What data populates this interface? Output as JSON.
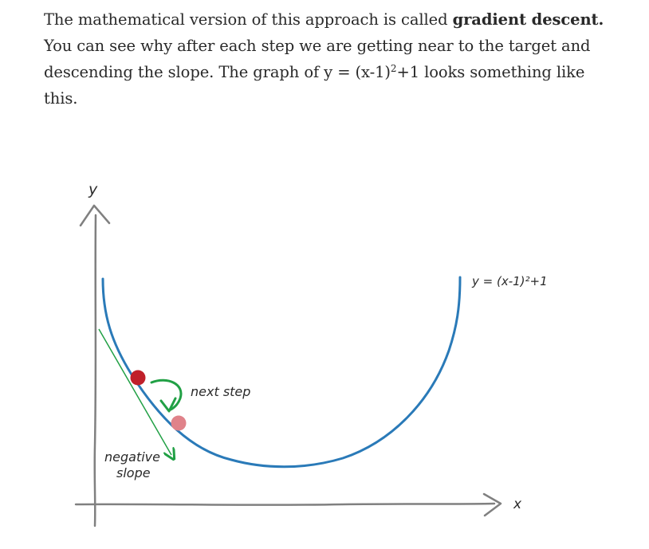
{
  "paragraph": {
    "text_1": "The mathematical version of this approach is called ",
    "bold": "gradient descent.",
    "text_2": " You can see why after each step we are getting near to the target and descending the slope. The graph of y = (x-1)",
    "superscript": "2",
    "text_3": "+1 looks something like this."
  },
  "figure": {
    "y_axis_label": "y",
    "x_axis_label": "x",
    "curve_label": "y = (x-1)²+1",
    "next_step_label": "next step",
    "negative_label_line1": "negative",
    "negative_label_line2": "slope",
    "colors": {
      "curve": "#2a7ab8",
      "axis": "#808080",
      "tangent": "#21a045",
      "current_point": "#c0202a",
      "next_point": "#e0828a",
      "step_arrow": "#21a045"
    }
  }
}
